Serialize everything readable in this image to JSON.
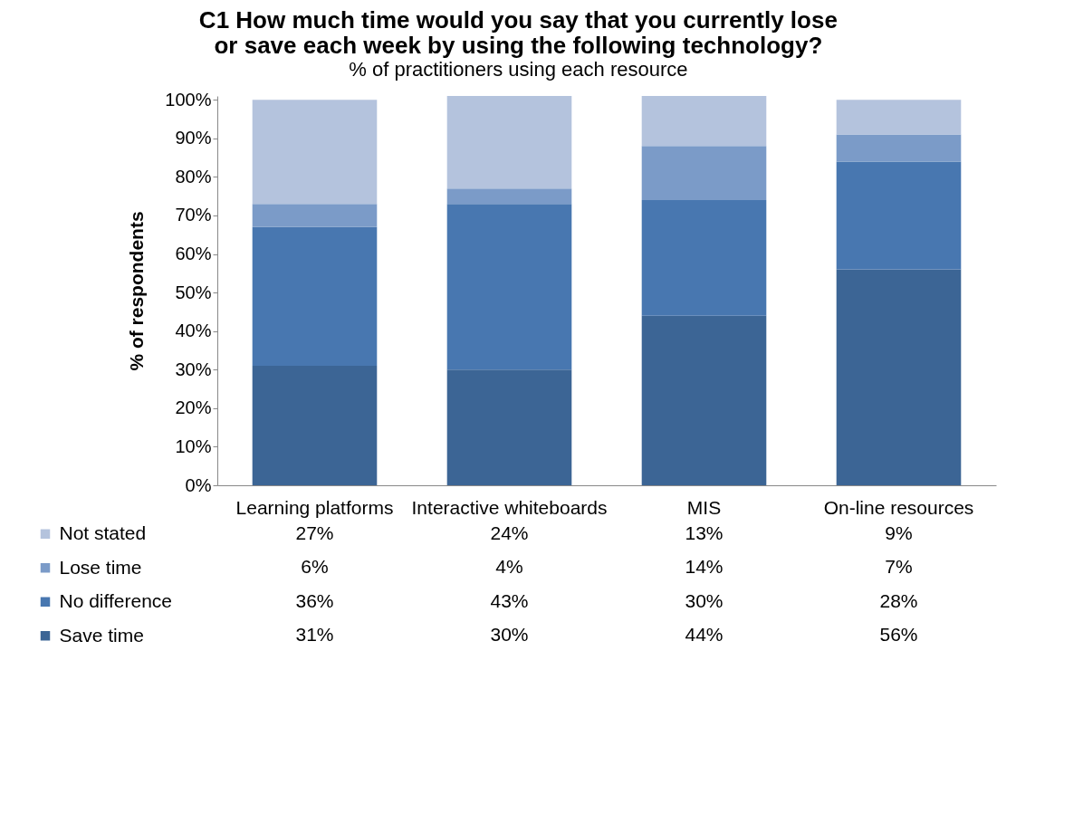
{
  "chart_data": {
    "type": "bar",
    "title": "C1 How much time would you say that you currently lose or save each week by using the following technology?",
    "subtitle": "% of practitioners using each resource",
    "ylabel": "% of respondents",
    "categories": [
      "Learning platforms",
      "Interactive whiteboards",
      "MIS",
      "On-line resources"
    ],
    "stacked": true,
    "legend": "bottom left",
    "series": [
      {
        "name": "Save time",
        "color": "#3c6595",
        "values": [
          31,
          30,
          44,
          56
        ],
        "value_labels": [
          "31%",
          "30%",
          "44%",
          "56%"
        ]
      },
      {
        "name": "No difference",
        "color": "#4877b0",
        "values": [
          36,
          43,
          30,
          28
        ],
        "value_labels": [
          "36%",
          "43%",
          "30%",
          "28%"
        ]
      },
      {
        "name": "Lose time",
        "color": "#7b9bc8",
        "values": [
          6,
          4,
          14,
          7
        ],
        "value_labels": [
          "6%",
          "4%",
          "14%",
          "7%"
        ]
      },
      {
        "name": "Not stated",
        "color": "#b4c3dd",
        "values": [
          27,
          24,
          13,
          9
        ],
        "value_labels": [
          "27%",
          "24%",
          "13%",
          "9%"
        ]
      }
    ],
    "ylim": [
      0,
      101
    ],
    "yticks": [
      {
        "value": 0,
        "label": "0%"
      },
      {
        "value": 10,
        "label": "10%"
      },
      {
        "value": 20,
        "label": "20%"
      },
      {
        "value": 30,
        "label": "30%"
      },
      {
        "value": 40,
        "label": "40%"
      },
      {
        "value": 50,
        "label": "50%"
      },
      {
        "value": 60,
        "label": "60%"
      },
      {
        "value": 70,
        "label": "70%"
      },
      {
        "value": 80,
        "label": "80%"
      },
      {
        "value": 90,
        "label": "90%"
      },
      {
        "value": 100,
        "label": "100%"
      }
    ]
  }
}
